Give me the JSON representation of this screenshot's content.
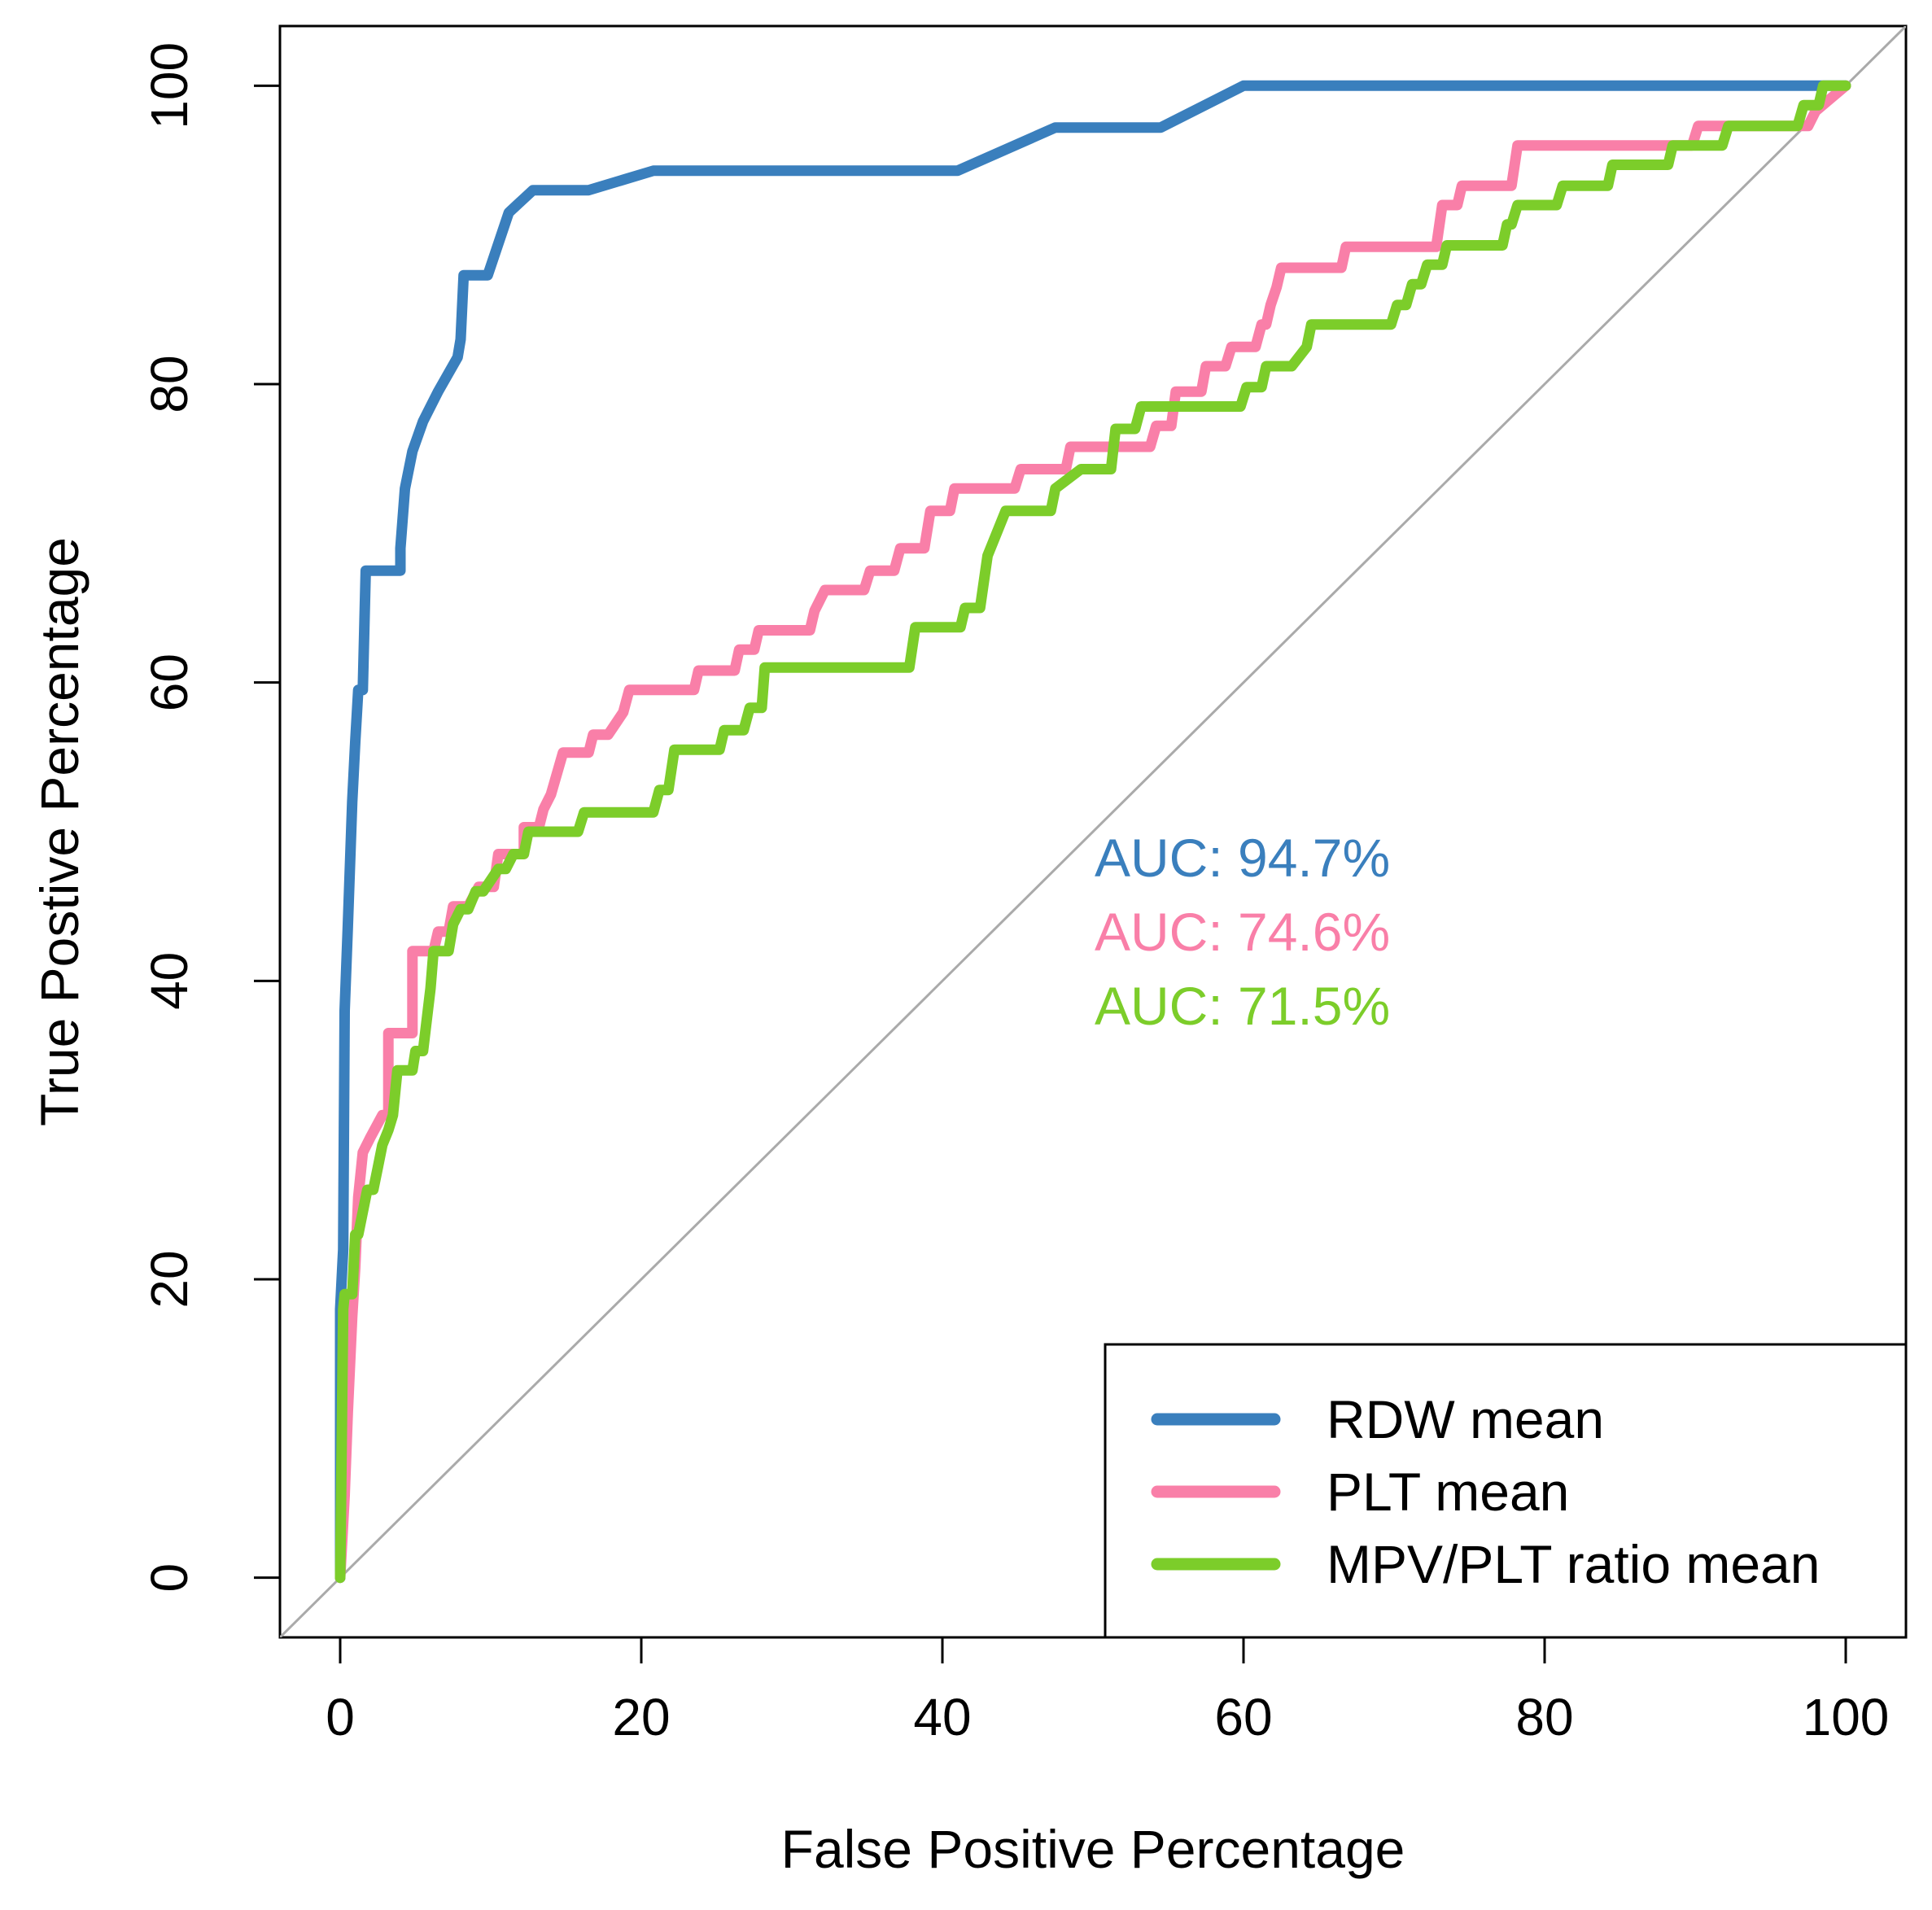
{
  "chart_data": {
    "type": "line",
    "xlabel": "False Positive Percentage",
    "ylabel": "True Postive Percentage",
    "xlim": [
      -4,
      104
    ],
    "ylim": [
      -4,
      104
    ],
    "xticks": [
      0,
      20,
      40,
      60,
      80,
      100
    ],
    "yticks": [
      0,
      20,
      40,
      60,
      80,
      100
    ],
    "grid": false,
    "legend_position": "bottom-right",
    "reference_line": {
      "x": [
        -4,
        104
      ],
      "y": [
        -4,
        104
      ],
      "color": "#aaaaaa"
    },
    "series": [
      {
        "name": "RDW mean",
        "color": "#3a7fbd",
        "auc_label": "AUC: 94.7%",
        "x": [
          0,
          0,
          0.2,
          0.3,
          0.5,
          0.8,
          1.0,
          1.2,
          1.5,
          1.7,
          1.7,
          4.0,
          4.0,
          4.3,
          4.8,
          5.5,
          6.5,
          7.8,
          8.0,
          8.2,
          8.5,
          9.8,
          11.2,
          12.8,
          16.5,
          20.8,
          41.0,
          47.5,
          54.5,
          60.0,
          98.0,
          100
        ],
        "y": [
          0,
          18,
          22,
          38,
          43.5,
          52,
          56,
          59.5,
          59.5,
          67.5,
          67.5,
          67.5,
          69,
          73,
          75.5,
          77.5,
          79.5,
          81.8,
          83,
          87.3,
          87.3,
          87.3,
          91.5,
          93,
          93,
          94.3,
          94.3,
          97.2,
          97.2,
          100,
          100,
          100
        ]
      },
      {
        "name": "PLT mean",
        "color": "#f97fa8",
        "auc_label": "AUC: 74.6%",
        "x": [
          0,
          0.3,
          0.5,
          0.8,
          1.0,
          1.2,
          1.5,
          2.0,
          2.8,
          3.2,
          3.2,
          4.8,
          4.8,
          6.2,
          6.5,
          7.2,
          7.5,
          8.5,
          9.2,
          10.2,
          10.5,
          12.2,
          12.2,
          13.2,
          13.5,
          14.0,
          14.8,
          16.5,
          16.8,
          17.8,
          18.8,
          19.2,
          23.5,
          23.8,
          26.2,
          26.5,
          27.5,
          27.8,
          31.2,
          31.5,
          32.2,
          34.8,
          35.2,
          36.8,
          37.2,
          38.8,
          39.2,
          40.5,
          40.8,
          44.8,
          45.2,
          48.2,
          48.5,
          53.8,
          54.2,
          55.2,
          55.5,
          57.2,
          57.5,
          58.8,
          59.2,
          60.8,
          61.2,
          61.5,
          61.8,
          62.2,
          62.5,
          66.5,
          66.8,
          72.8,
          73.2,
          74.2,
          74.5,
          77.8,
          78.2,
          89.8,
          90.2,
          97.5,
          98.0,
          100
        ],
        "y": [
          0,
          5.5,
          11,
          17.5,
          20.8,
          25.5,
          28.5,
          29.5,
          31,
          31,
          36.5,
          36.5,
          42,
          42,
          43.3,
          43.3,
          45,
          45,
          46.3,
          46.3,
          48.5,
          48.5,
          50.3,
          50.3,
          51.5,
          52.5,
          55.3,
          55.3,
          56.5,
          56.5,
          58,
          59.5,
          59.5,
          60.8,
          60.8,
          62.2,
          62.2,
          63.5,
          63.5,
          64.8,
          66.2,
          66.2,
          67.5,
          67.5,
          69,
          69,
          71.5,
          71.5,
          73,
          73,
          74.3,
          74.3,
          75.8,
          75.8,
          77.2,
          77.2,
          79.5,
          79.5,
          81.2,
          81.2,
          82.5,
          82.5,
          84,
          84,
          85.3,
          86.5,
          87.8,
          87.8,
          89.2,
          89.2,
          92,
          92,
          93.3,
          93.3,
          96,
          96,
          97.3,
          97.3,
          98.3,
          100
        ]
      },
      {
        "name": "MPV/PLT ratio mean",
        "color": "#7ccd2a",
        "auc_label": "AUC: 71.5%",
        "x": [
          0,
          0.2,
          0.3,
          0.8,
          1.0,
          1.2,
          1.8,
          2.2,
          2.5,
          2.8,
          3.2,
          3.5,
          3.8,
          4.8,
          5.0,
          5.5,
          6.0,
          6.2,
          7.2,
          7.5,
          8.0,
          8.5,
          9.0,
          9.5,
          10.5,
          11.0,
          11.5,
          12.2,
          12.5,
          15.8,
          16.2,
          20.8,
          21.2,
          21.8,
          22.2,
          25.2,
          25.5,
          26.8,
          27.2,
          28.0,
          28.2,
          37.8,
          38.2,
          41.2,
          41.5,
          42.5,
          43.0,
          44.2,
          44.8,
          47.2,
          47.5,
          49.2,
          51.2,
          51.5,
          52.8,
          53.2,
          53.8,
          54.2,
          59.8,
          60.2,
          61.2,
          61.5,
          63.2,
          64.2,
          64.5,
          65.2,
          65.5,
          69.8,
          70.2,
          70.8,
          71.2,
          71.8,
          72.2,
          73.2,
          73.5,
          77.2,
          77.5,
          77.8,
          78.2,
          80.8,
          81.2,
          84.2,
          84.5,
          88.2,
          88.5,
          91.8,
          92.2,
          96.8,
          97.2,
          98.2,
          98.5,
          100
        ],
        "y": [
          0,
          18,
          19,
          19,
          23,
          23,
          26,
          26,
          27.5,
          29,
          30,
          31,
          34,
          34,
          35.3,
          35.3,
          39.5,
          42,
          42,
          43.8,
          44.8,
          44.8,
          46,
          46,
          47.5,
          47.5,
          48.5,
          48.5,
          50,
          50,
          51.3,
          51.3,
          52.8,
          52.8,
          55.5,
          55.5,
          56.8,
          56.8,
          58.3,
          58.3,
          61,
          61,
          63.7,
          63.7,
          65,
          65,
          68.5,
          71.5,
          71.5,
          71.5,
          73,
          74.3,
          74.3,
          77,
          77,
          78.5,
          78.5,
          78.5,
          78.5,
          79.8,
          79.8,
          81.2,
          81.2,
          82.5,
          84,
          84,
          84,
          84,
          85.3,
          85.3,
          86.7,
          86.7,
          88,
          88,
          89.3,
          89.3,
          90.7,
          90.7,
          92,
          92,
          93.3,
          93.3,
          94.7,
          94.7,
          96,
          96,
          97.3,
          97.3,
          98.7,
          98.7,
          100,
          100
        ]
      }
    ]
  }
}
